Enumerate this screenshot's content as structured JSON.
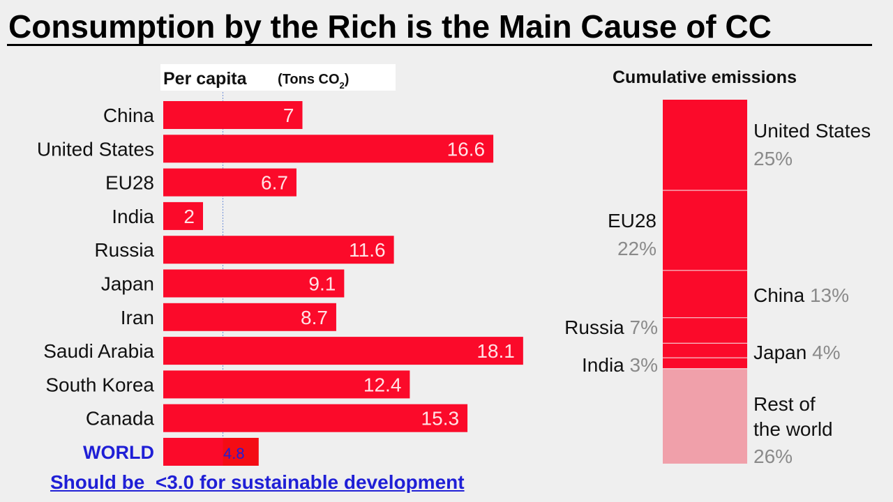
{
  "title": "Consumption by the Rich is the Main Cause of CC",
  "note": "Should be  <3.0 for sustainable development",
  "colors": {
    "bar": "#fb0a2a",
    "world_bar": "#f40c14",
    "rest_of_world": "#f0a0aa",
    "world_label": "#1f1fd6",
    "pct_text": "#8a8a8a"
  },
  "chart_data": [
    {
      "type": "bar",
      "orientation": "horizontal",
      "title": "Per capita",
      "unit_prefix": "(Tons CO",
      "unit_sub": "2",
      "unit_suffix": ")",
      "categories": [
        "China",
        "United States",
        "EU28",
        "India",
        "Russia",
        "Japan",
        "Iran",
        "Saudi Arabia",
        "South Korea",
        "Canada",
        "WORLD"
      ],
      "values": [
        7,
        16.6,
        6.7,
        2,
        11.6,
        9.1,
        8.7,
        18.1,
        12.4,
        15.3,
        4.8
      ],
      "value_labels": [
        "7",
        "16.6",
        "6.7",
        "2",
        "11.6",
        "9.1",
        "8.7",
        "18.1",
        "12.4",
        "15.3",
        "4.8"
      ],
      "reference_line": 3.0,
      "xlim": [
        0,
        20
      ]
    },
    {
      "type": "stacked_bar",
      "title": "Cumulative emissions",
      "segments": [
        {
          "name": "United States",
          "pct_label": "25%",
          "value": 25,
          "side": "right"
        },
        {
          "name": "EU28",
          "pct_label": "22%",
          "value": 22,
          "side": "left"
        },
        {
          "name": "China",
          "pct_label": "13%",
          "value": 13,
          "side": "right"
        },
        {
          "name": "Russia",
          "pct_label": "7%",
          "value": 7,
          "side": "left"
        },
        {
          "name": "Japan",
          "pct_label": "4%",
          "value": 4,
          "side": "right"
        },
        {
          "name": "India",
          "pct_label": "3%",
          "value": 3,
          "side": "left"
        },
        {
          "name": "Rest of\nthe world",
          "pct_label": "26%",
          "value": 26,
          "side": "right",
          "muted": true
        }
      ]
    }
  ]
}
